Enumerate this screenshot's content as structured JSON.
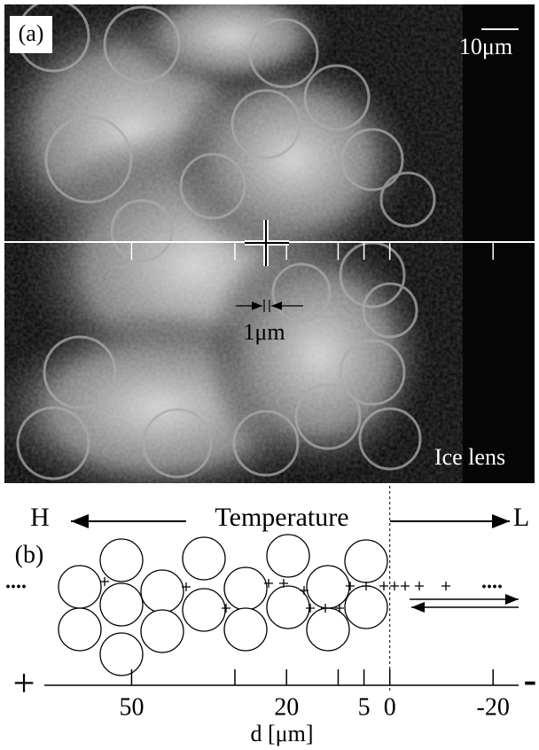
{
  "panel_a": {
    "label": "(a)",
    "scale_bar": "10μm",
    "cross_size": "1μm",
    "region": "Ice lens"
  },
  "panel_b": {
    "label": "(b)",
    "hot": "H",
    "axis_title": "Temperature",
    "cold": "L",
    "ellipsis_left": "....",
    "ellipsis_right": "....",
    "sign_left": "+",
    "sign_right": "-",
    "xlim": [
      66.9,
      -25.8
    ],
    "xticks": [
      50,
      20,
      5,
      0,
      -20
    ],
    "minor_ticks": [
      30,
      10
    ],
    "xlabel": "d [μm]"
  }
}
